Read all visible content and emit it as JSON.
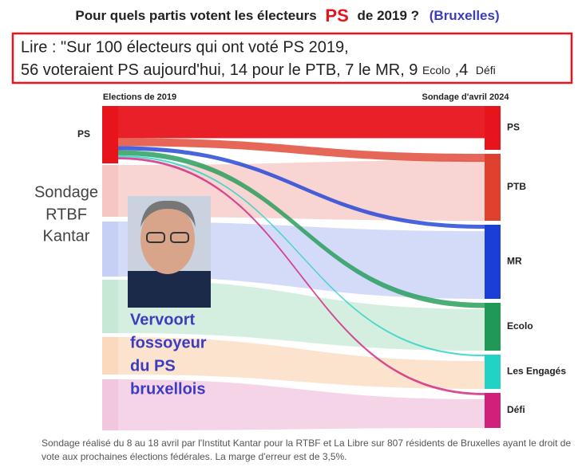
{
  "title": {
    "before": "Pour quels partis votent les électeurs",
    "highlight": "PS",
    "after": "de 2019 ?",
    "region": "(Bruxelles)"
  },
  "callout": {
    "line1": "Lire : \"Sur 100 électeurs qui ont voté PS 2019,",
    "line2": "56 voteraient  PS aujourd'hui, 14 pour le  PTB, 7  le MR, 9",
    "tag1": "Ecolo",
    "sep": ",4",
    "tag2": "Défi"
  },
  "overlay": {
    "side_text": [
      "Sondage",
      "RTBF",
      "Kantar"
    ],
    "caption": [
      "Vervoort",
      "fossoyeur",
      "du PS",
      "bruxellois"
    ]
  },
  "footnote": "Sondage réalisé du 8 au 18 avril par l'Institut Kantar pour la RTBF et La Libre sur 807 résidents de Bruxelles ayant le droit de vote aux prochaines élections fédérales. La marge d'erreur est de 3,5%.",
  "chart_data": {
    "type": "sankey",
    "left_title": "Elections de 2019",
    "right_title": "Sondage d'avril  2024",
    "source": "PS",
    "targets": [
      "PS",
      "PTB",
      "MR",
      "Ecolo",
      "Les Engagés",
      "Défi"
    ],
    "values": [
      56,
      14,
      7,
      9,
      3,
      4
    ],
    "colors": [
      "#e8141c",
      "#e0402e",
      "#1a3fd6",
      "#1f9a55",
      "#22d3c5",
      "#d0207a"
    ]
  }
}
